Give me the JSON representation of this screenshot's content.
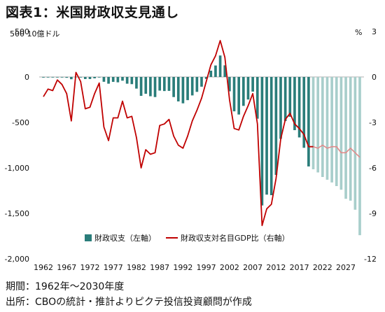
{
  "title": "図表1：米国財政収支見通し",
  "left_unit": "500  10億ドル",
  "right_unit": "%",
  "footer": {
    "period": "期間：1962年～2030年度",
    "source": "出所：CBOの統計・推計よりピクテ投信投資顧問が作成"
  },
  "colors": {
    "bar_actual": "#2a7d7a",
    "bar_forecast": "#a8cecb",
    "line_actual": "#c00000",
    "line_forecast": "#e08a8a",
    "axis": "#999999"
  },
  "chart_data": {
    "type": "bar",
    "left_axis": {
      "ylim": [
        -2000,
        500
      ],
      "ticks": [
        "500",
        "0",
        "-500",
        "-1,000",
        "-1,500",
        "-2,000"
      ],
      "tick_values": [
        500,
        0,
        -500,
        -1000,
        -1500,
        -2000
      ]
    },
    "right_axis": {
      "ylim": [
        -12,
        3
      ],
      "ticks": [
        "3",
        "0",
        "-3",
        "-6",
        "-9",
        "-12"
      ],
      "tick_values": [
        3,
        0,
        -3,
        -6,
        -9,
        -12
      ]
    },
    "x_tick_labels": [
      "1962",
      "1967",
      "1972",
      "1977",
      "1982",
      "1987",
      "1992",
      "1997",
      "2002",
      "2007",
      "2012",
      "2017",
      "2022",
      "2027"
    ],
    "years": [
      1962,
      1963,
      1964,
      1965,
      1966,
      1967,
      1968,
      1969,
      1970,
      1971,
      1972,
      1973,
      1974,
      1975,
      1976,
      1977,
      1978,
      1979,
      1980,
      1981,
      1982,
      1983,
      1984,
      1985,
      1986,
      1987,
      1988,
      1989,
      1990,
      1991,
      1992,
      1993,
      1994,
      1995,
      1996,
      1997,
      1998,
      1999,
      2000,
      2001,
      2002,
      2003,
      2004,
      2005,
      2006,
      2007,
      2008,
      2009,
      2010,
      2011,
      2012,
      2013,
      2014,
      2015,
      2016,
      2017,
      2018,
      2019,
      2020,
      2021,
      2022,
      2023,
      2024,
      2025,
      2026,
      2027,
      2028,
      2029,
      2030
    ],
    "forecast_start": 2020,
    "series": [
      {
        "name": "財政収支（左軸）",
        "type": "bar",
        "axis": "left",
        "values": [
          -7,
          -5,
          -6,
          -1,
          -4,
          -9,
          -25,
          3,
          -3,
          -23,
          -23,
          -15,
          -6,
          -53,
          -74,
          -54,
          -59,
          -41,
          -74,
          -79,
          -128,
          -208,
          -185,
          -212,
          -221,
          -150,
          -155,
          -153,
          -221,
          -269,
          -290,
          -255,
          -203,
          -164,
          -107,
          -22,
          69,
          126,
          236,
          128,
          -158,
          -378,
          -413,
          -318,
          -248,
          -161,
          -459,
          -1413,
          -1294,
          -1300,
          -1077,
          -680,
          -485,
          -438,
          -585,
          -665,
          -779,
          -984,
          -1015,
          -1050,
          -1100,
          -1130,
          -1160,
          -1200,
          -1240,
          -1340,
          -1360,
          -1460,
          -1740
        ]
      },
      {
        "name": "財政収支対名目GDP比（右軸）",
        "type": "line",
        "axis": "right",
        "values": [
          -1.3,
          -0.8,
          -0.9,
          -0.2,
          -0.5,
          -1.1,
          -2.9,
          0.3,
          -0.3,
          -2.1,
          -2.0,
          -1.1,
          -0.4,
          -3.3,
          -4.2,
          -2.7,
          -2.7,
          -1.6,
          -2.7,
          -2.6,
          -4.0,
          -6.0,
          -4.8,
          -5.1,
          -5.0,
          -3.2,
          -3.1,
          -2.8,
          -3.9,
          -4.5,
          -4.7,
          -3.9,
          -2.9,
          -2.2,
          -1.4,
          -0.3,
          0.8,
          1.4,
          2.4,
          1.3,
          -1.5,
          -3.4,
          -3.5,
          -2.6,
          -1.9,
          -1.1,
          -3.1,
          -9.8,
          -8.7,
          -8.4,
          -6.7,
          -4.1,
          -2.8,
          -2.4,
          -3.1,
          -3.4,
          -3.8,
          -4.6,
          -4.6,
          -4.7,
          -4.5,
          -4.7,
          -4.6,
          -4.6,
          -5.0,
          -5.0,
          -4.7,
          -5.0,
          -5.3
        ]
      }
    ]
  }
}
